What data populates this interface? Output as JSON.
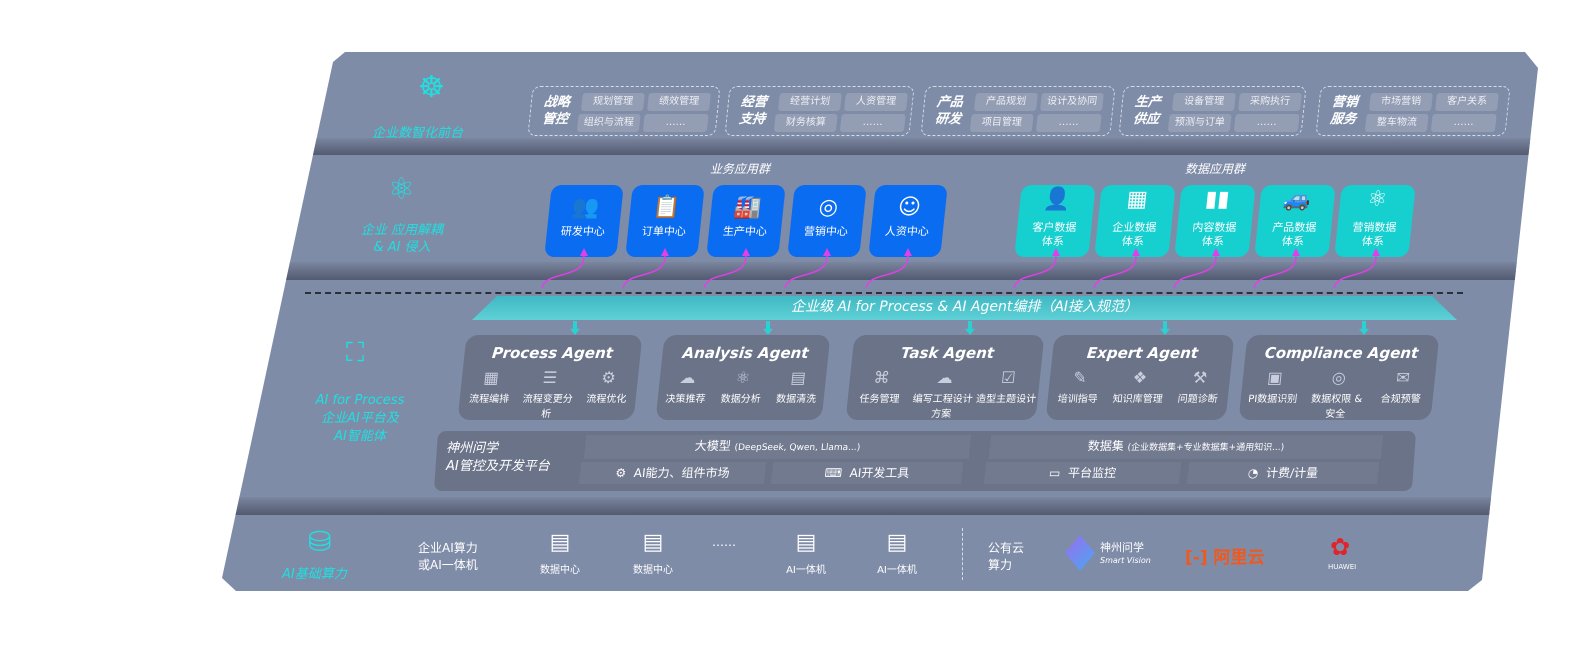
{
  "layer1": {
    "label": "企业数智化前台",
    "icon": "brain-icon",
    "groups": [
      {
        "title": [
          "战略",
          "管控"
        ],
        "chips": [
          "规划管理",
          "绩效管理",
          "组织与流程",
          "……"
        ]
      },
      {
        "title": [
          "经营",
          "支持"
        ],
        "chips": [
          "经营计划",
          "人资管理",
          "财务核算",
          "……"
        ]
      },
      {
        "title": [
          "产品",
          "研发"
        ],
        "chips": [
          "产品规划",
          "设计及协同",
          "项目管理",
          "……"
        ]
      },
      {
        "title": [
          "生产",
          "供应"
        ],
        "chips": [
          "设备管理",
          "采购执行",
          "预测与订单",
          "……"
        ]
      },
      {
        "title": [
          "营销",
          "服务"
        ],
        "chips": [
          "市场营销",
          "客户关系",
          "整车物流",
          "……"
        ]
      }
    ]
  },
  "layer2": {
    "label": [
      "企业 应用解耦",
      "& AI 侵入"
    ],
    "biz_title": "业务应用群",
    "data_title": "数据应用群",
    "biz": [
      {
        "label": "研发中心",
        "icon": "users-icon"
      },
      {
        "label": "订单中心",
        "icon": "clipboard-icon"
      },
      {
        "label": "生产中心",
        "icon": "factory-icon"
      },
      {
        "label": "营销中心",
        "icon": "target-icon"
      },
      {
        "label": "人资中心",
        "icon": "person-icon"
      }
    ],
    "data": [
      {
        "label": [
          "客户数据",
          "体系"
        ],
        "icon": "user-icon"
      },
      {
        "label": [
          "企业数据",
          "体系"
        ],
        "icon": "building-icon"
      },
      {
        "label": [
          "内容数据",
          "体系"
        ],
        "icon": "books-icon"
      },
      {
        "label": [
          "产品数据",
          "体系"
        ],
        "icon": "car-icon"
      },
      {
        "label": [
          "营销数据",
          "体系"
        ],
        "icon": "atom-icon"
      }
    ]
  },
  "banner": "企业级 AI for Process & AI Agent编排（AI接入规范）",
  "layer3": {
    "label": [
      "AI for Process",
      "企业AI平台及",
      "AI智能体"
    ],
    "agents": [
      {
        "title": "Process Agent",
        "items": [
          "流程编排",
          "流程变更分析",
          "流程优化"
        ]
      },
      {
        "title": "Analysis Agent",
        "items": [
          "决策推荐",
          "数据分析",
          "数据清洗"
        ]
      },
      {
        "title": "Task Agent",
        "items": [
          "任务管理",
          "编写工程设计方案",
          "造型主题设计"
        ]
      },
      {
        "title": "Expert Agent",
        "items": [
          "培训指导",
          "知识库管理",
          "问题诊断"
        ]
      },
      {
        "title": "Compliance Agent",
        "items": [
          "PI数据识别",
          "数据权限 & 安全",
          "合规预警"
        ]
      }
    ],
    "platform": {
      "name": [
        "神州问学",
        "AI管控及开发平台"
      ],
      "model": "大模型",
      "model_note": "(DeepSeek, Qwen, Llama...)",
      "dataset": "数据集",
      "dataset_note": "(企业数据集+专业数据集+通用知识...)",
      "tools": [
        "AI能力、组件市场",
        "AI开发工具",
        "平台监控",
        "计费/计量"
      ]
    }
  },
  "layer4": {
    "label": "AI基础算力",
    "private_label": [
      "企业AI算力",
      "或AI一体机"
    ],
    "servers": [
      "数据中心",
      "数据中心",
      "……",
      "AI一体机",
      "AI一体机"
    ],
    "public_label": [
      "公有云",
      "算力"
    ],
    "vendors": {
      "smart_vision": [
        "神州问学",
        "Smart Vision"
      ],
      "aliyun": "阿里云",
      "huawei": "HUAWEI"
    }
  },
  "colors": {
    "accent_teal": "#1fe0e0",
    "biz_blue": "#0a6cf0",
    "data_cyan": "#16cfcf",
    "arrow_magenta": "#e040e8",
    "panel": "#7f8ca8"
  }
}
